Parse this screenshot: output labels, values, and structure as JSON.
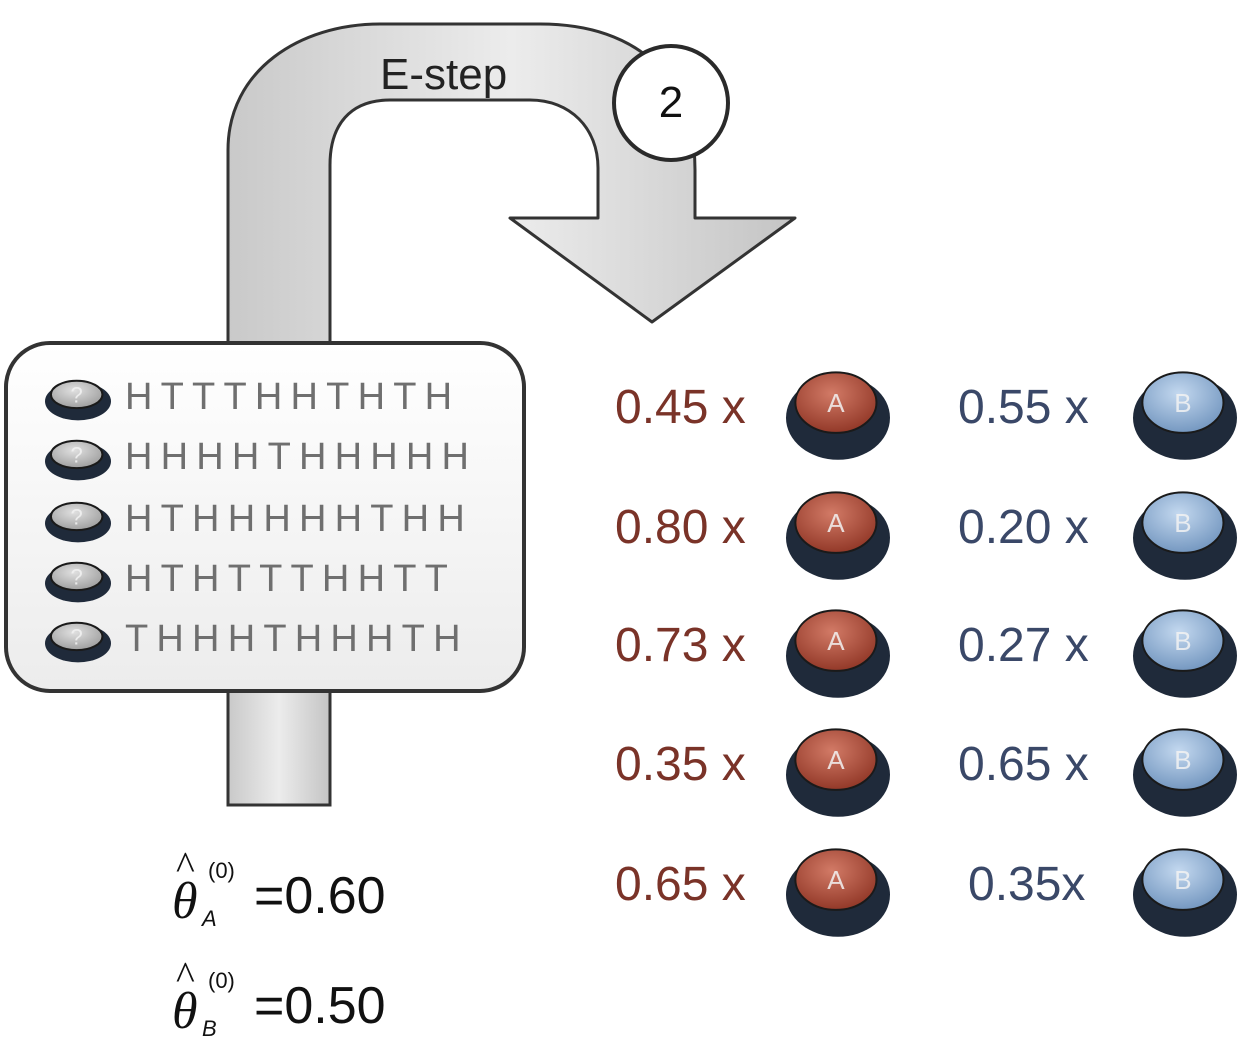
{
  "diagram": {
    "step_label": "E-step",
    "step_number": "2",
    "sequences": [
      "HTTTHHTHTH",
      "HHHHTHHHHH",
      "HTHHHHHTHH",
      "HTHTTTHHTT",
      "THHHTHHHTH"
    ],
    "unknown_coin_glyph": "?",
    "coin_a_letter": "A",
    "coin_b_letter": "B",
    "weights_a": [
      "0.45 x",
      "0.80 x",
      "0.73 x",
      "0.35 x",
      "0.65 x"
    ],
    "weights_b": [
      "0.55 x",
      "0.20 x",
      "0.27 x",
      "0.65 x",
      "0.35x"
    ],
    "theta_a": {
      "symbol": "θ",
      "hat": "^",
      "superscript": "(0)",
      "subscript": "A",
      "value": "=0.60"
    },
    "theta_b": {
      "symbol": "θ",
      "hat": "^",
      "superscript": "(0)",
      "subscript": "B",
      "value": "=0.50"
    },
    "colors": {
      "coin_a": "#b5533f",
      "coin_b": "#8fb0d6",
      "coin_rim": "#1f2a3a",
      "text_a": "#7a3328",
      "text_b": "#3a4868",
      "arrow_fill": "#dcdcdc"
    }
  }
}
